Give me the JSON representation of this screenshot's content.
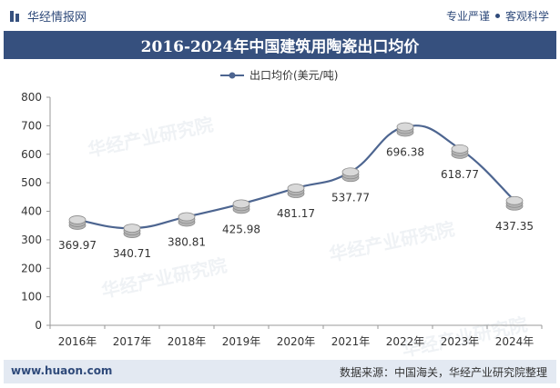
{
  "header": {
    "brand": "华经情报网",
    "slogan_left": "专业严谨",
    "slogan_right": "客观科学"
  },
  "title": "2016-2024年中国建筑用陶瓷出口均价",
  "watermark": "华经产业研究院",
  "footer": {
    "website": "www.huaon.com",
    "source": "数据来源：中国海关，华经产业研究院整理"
  },
  "colors": {
    "brand": "#36507e",
    "line": "#4d6590",
    "marker": "#b5b5b5"
  },
  "chart_data": {
    "type": "line",
    "categories": [
      "2016年",
      "2017年",
      "2018年",
      "2019年",
      "2020年",
      "2021年",
      "2022年",
      "2023年",
      "2024年"
    ],
    "series": [
      {
        "name": "出口均价(美元/吨)",
        "values": [
          369.97,
          340.71,
          380.81,
          425.98,
          481.17,
          537.77,
          696.38,
          618.77,
          437.35
        ]
      }
    ],
    "ylim": [
      0,
      800
    ],
    "yticks": [
      0,
      100,
      200,
      300,
      400,
      500,
      600,
      700,
      800
    ],
    "smooth": true,
    "grid": false,
    "legend_position": "top-center",
    "data_labels": true
  }
}
